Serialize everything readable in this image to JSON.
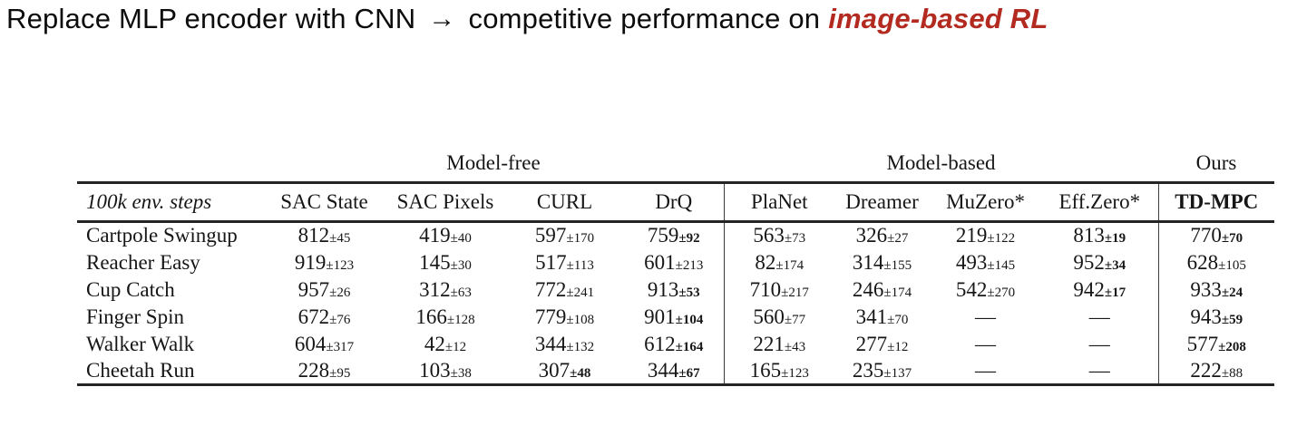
{
  "title": {
    "text_before_arrow": "Replace MLP encoder with CNN",
    "arrow": "→",
    "text_after_arrow": "competitive performance on",
    "highlight": "image-based RL"
  },
  "colors": {
    "highlight_red": "#b32b20",
    "rule_dark": "#242424"
  },
  "table": {
    "row_header_label": "100k env. steps",
    "group_model_free": "Model-free",
    "group_model_based": "Model-based",
    "group_ours": "Ours",
    "columns": [
      "SAC State",
      "SAC Pixels",
      "CURL",
      "DrQ",
      "PlaNet",
      "Dreamer",
      "MuZero*",
      "Eff.Zero*",
      "TD-MPC"
    ],
    "plus_minus": "±",
    "dash": "—",
    "rows": [
      {
        "env": "Cartpole Swingup",
        "cells": [
          {
            "value": "812",
            "err": "45",
            "bold": false
          },
          {
            "value": "419",
            "err": "40",
            "bold": false
          },
          {
            "value": "597",
            "err": "170",
            "bold": false
          },
          {
            "value": "759",
            "err": "92",
            "bold": true
          },
          {
            "value": "563",
            "err": "73",
            "bold": false
          },
          {
            "value": "326",
            "err": "27",
            "bold": false
          },
          {
            "value": "219",
            "err": "122",
            "bold": false
          },
          {
            "value": "813",
            "err": "19",
            "bold": true
          },
          {
            "value": "770",
            "err": "70",
            "bold": true
          }
        ]
      },
      {
        "env": "Reacher Easy",
        "cells": [
          {
            "value": "919",
            "err": "123",
            "bold": false
          },
          {
            "value": "145",
            "err": "30",
            "bold": false
          },
          {
            "value": "517",
            "err": "113",
            "bold": false
          },
          {
            "value": "601",
            "err": "213",
            "bold": false
          },
          {
            "value": "82",
            "err": "174",
            "bold": false
          },
          {
            "value": "314",
            "err": "155",
            "bold": false
          },
          {
            "value": "493",
            "err": "145",
            "bold": false
          },
          {
            "value": "952",
            "err": "34",
            "bold": true
          },
          {
            "value": "628",
            "err": "105",
            "bold": false
          }
        ]
      },
      {
        "env": "Cup Catch",
        "cells": [
          {
            "value": "957",
            "err": "26",
            "bold": false
          },
          {
            "value": "312",
            "err": "63",
            "bold": false
          },
          {
            "value": "772",
            "err": "241",
            "bold": false
          },
          {
            "value": "913",
            "err": "53",
            "bold": true
          },
          {
            "value": "710",
            "err": "217",
            "bold": false
          },
          {
            "value": "246",
            "err": "174",
            "bold": false
          },
          {
            "value": "542",
            "err": "270",
            "bold": false
          },
          {
            "value": "942",
            "err": "17",
            "bold": true
          },
          {
            "value": "933",
            "err": "24",
            "bold": true
          }
        ]
      },
      {
        "env": "Finger Spin",
        "cells": [
          {
            "value": "672",
            "err": "76",
            "bold": false
          },
          {
            "value": "166",
            "err": "128",
            "bold": false
          },
          {
            "value": "779",
            "err": "108",
            "bold": false
          },
          {
            "value": "901",
            "err": "104",
            "bold": true
          },
          {
            "value": "560",
            "err": "77",
            "bold": false
          },
          {
            "value": "341",
            "err": "70",
            "bold": false
          },
          {
            "value": "—",
            "err": null,
            "bold": false
          },
          {
            "value": "—",
            "err": null,
            "bold": false
          },
          {
            "value": "943",
            "err": "59",
            "bold": true
          }
        ]
      },
      {
        "env": "Walker Walk",
        "cells": [
          {
            "value": "604",
            "err": "317",
            "bold": false
          },
          {
            "value": "42",
            "err": "12",
            "bold": false
          },
          {
            "value": "344",
            "err": "132",
            "bold": false
          },
          {
            "value": "612",
            "err": "164",
            "bold": true
          },
          {
            "value": "221",
            "err": "43",
            "bold": false
          },
          {
            "value": "277",
            "err": "12",
            "bold": false
          },
          {
            "value": "—",
            "err": null,
            "bold": false
          },
          {
            "value": "—",
            "err": null,
            "bold": false
          },
          {
            "value": "577",
            "err": "208",
            "bold": true
          }
        ]
      },
      {
        "env": "Cheetah Run",
        "cells": [
          {
            "value": "228",
            "err": "95",
            "bold": false
          },
          {
            "value": "103",
            "err": "38",
            "bold": false
          },
          {
            "value": "307",
            "err": "48",
            "bold": true
          },
          {
            "value": "344",
            "err": "67",
            "bold": true
          },
          {
            "value": "165",
            "err": "123",
            "bold": false
          },
          {
            "value": "235",
            "err": "137",
            "bold": false
          },
          {
            "value": "—",
            "err": null,
            "bold": false
          },
          {
            "value": "—",
            "err": null,
            "bold": false
          },
          {
            "value": "222",
            "err": "88",
            "bold": false
          }
        ]
      }
    ]
  }
}
